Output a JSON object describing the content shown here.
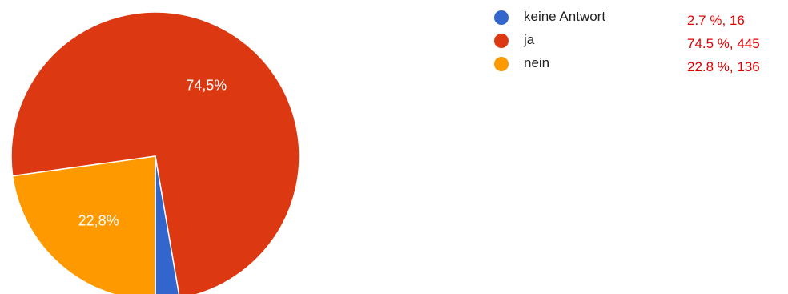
{
  "chart_data": {
    "type": "pie",
    "slices": [
      {
        "label": "keine Antwort",
        "value": 2.7,
        "display": "",
        "stat": "2.7 %, 16",
        "color": "#3366cc"
      },
      {
        "label": "ja",
        "value": 74.5,
        "display": "74,5%",
        "stat": "74.5 %, 445",
        "color": "#dc3912"
      },
      {
        "label": "nein",
        "value": 22.8,
        "display": "22,8%",
        "stat": "22.8 %, 136",
        "color": "#ff9900"
      }
    ],
    "start_angle_deg": 90,
    "direction": "clockwise",
    "legend_position": "right"
  }
}
